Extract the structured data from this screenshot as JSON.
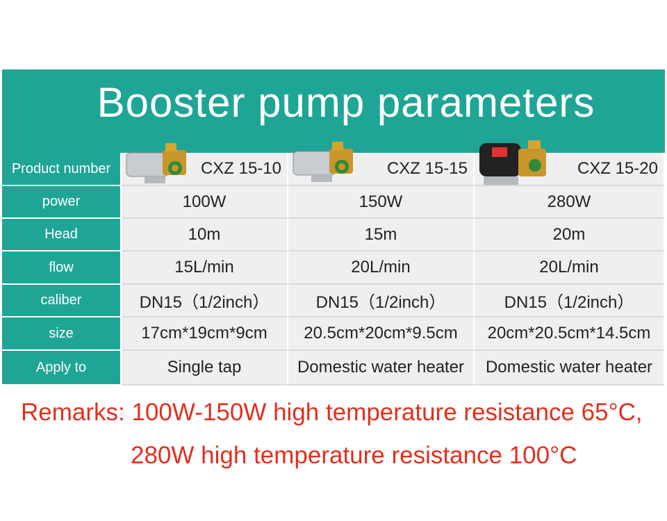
{
  "header": {
    "title": "Booster pump parameters"
  },
  "table": {
    "rows": [
      {
        "label": "Product number",
        "cells": [
          "CXZ 15-10",
          "CXZ 15-15",
          "CXZ 15-20"
        ]
      },
      {
        "label": "power",
        "cells": [
          "100W",
          "150W",
          "280W"
        ]
      },
      {
        "label": "Head",
        "cells": [
          "10m",
          "15m",
          "20m"
        ]
      },
      {
        "label": "flow",
        "cells": [
          "15L/min",
          "20L/min",
          "20L/min"
        ]
      },
      {
        "label": "caliber",
        "cells": [
          "DN15（1/2inch）",
          "DN15（1/2inch）",
          "DN15（1/2inch）"
        ]
      },
      {
        "label": "size",
        "cells": [
          "17cm*19cm*9cm",
          "20.5cm*20cm*9.5cm",
          "20cm*20.5cm*14.5cm"
        ]
      },
      {
        "label": "Apply to",
        "cells": [
          "Single tap",
          "Domestic water heater",
          "Domestic water heater"
        ]
      }
    ]
  },
  "remarks": [
    "Remarks: 100W-150W high temperature resistance 65°C,",
    "280W high temperature resistance 100°C"
  ]
}
